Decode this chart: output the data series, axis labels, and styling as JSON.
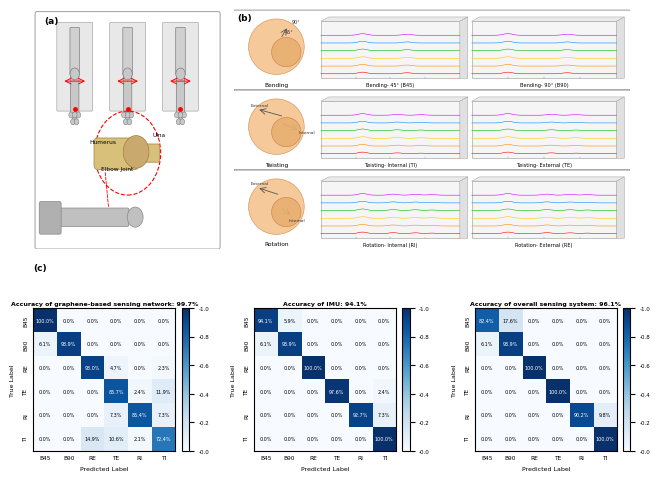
{
  "cm1_title": "Accuracy of graphene-based sensing network: 99.7%",
  "cm2_title": "Accuracy of IMU: 94.1%",
  "cm3_title": "Accuracy of overall sensing system: 96.1%",
  "labels": [
    "B45",
    "B90",
    "RE",
    "TE",
    "RI",
    "TI"
  ],
  "xlabel": "Predicted Label",
  "ylabel": "True Label",
  "cm1": [
    [
      1.0,
      0.0,
      0.0,
      0.0,
      0.0,
      0.0
    ],
    [
      0.061,
      0.939,
      0.0,
      0.0,
      0.0,
      0.0
    ],
    [
      0.0,
      0.0,
      0.93,
      0.047,
      0.0,
      0.023
    ],
    [
      0.0,
      0.0,
      0.0,
      0.857,
      0.024,
      0.119
    ],
    [
      0.0,
      0.0,
      0.0,
      0.073,
      0.854,
      0.073
    ],
    [
      0.0,
      0.0,
      0.149,
      0.106,
      0.021,
      0.724
    ]
  ],
  "cm1_text": [
    [
      "100.0%",
      "0.0%",
      "0.0%",
      "0.0%",
      "0.0%",
      "0.0%"
    ],
    [
      "6.1%",
      "93.9%",
      "0.0%",
      "0.0%",
      "0.0%",
      "0.0%"
    ],
    [
      "0.0%",
      "0.0%",
      "93.0%",
      "4.7%",
      "0.0%",
      "2.3%"
    ],
    [
      "0.0%",
      "0.0%",
      "0.0%",
      "85.7%",
      "2.4%",
      "11.9%"
    ],
    [
      "0.0%",
      "0.0%",
      "0.0%",
      "7.3%",
      "85.4%",
      "7.3%"
    ],
    [
      "0.0%",
      "0.0%",
      "14.9%",
      "10.6%",
      "2.1%",
      "72.4%"
    ]
  ],
  "cm2": [
    [
      0.941,
      0.059,
      0.0,
      0.0,
      0.0,
      0.0
    ],
    [
      0.061,
      0.939,
      0.0,
      0.0,
      0.0,
      0.0
    ],
    [
      0.0,
      0.0,
      1.0,
      0.0,
      0.0,
      0.0
    ],
    [
      0.0,
      0.0,
      0.0,
      0.976,
      0.0,
      0.024
    ],
    [
      0.0,
      0.0,
      0.0,
      0.0,
      0.927,
      0.073
    ],
    [
      0.0,
      0.0,
      0.0,
      0.0,
      0.0,
      1.0
    ]
  ],
  "cm2_text": [
    [
      "94.1%",
      "5.9%",
      "0.0%",
      "0.0%",
      "0.0%",
      "0.0%"
    ],
    [
      "6.1%",
      "93.9%",
      "0.0%",
      "0.0%",
      "0.0%",
      "0.0%"
    ],
    [
      "0.0%",
      "0.0%",
      "100.0%",
      "0.0%",
      "0.0%",
      "0.0%"
    ],
    [
      "0.0%",
      "0.0%",
      "0.0%",
      "97.6%",
      "0.0%",
      "2.4%"
    ],
    [
      "0.0%",
      "0.0%",
      "0.0%",
      "0.0%",
      "92.7%",
      "7.3%"
    ],
    [
      "0.0%",
      "0.0%",
      "0.0%",
      "0.0%",
      "0.0%",
      "100.0%"
    ]
  ],
  "cm3": [
    [
      0.824,
      0.176,
      0.0,
      0.0,
      0.0,
      0.0
    ],
    [
      0.061,
      0.939,
      0.0,
      0.0,
      0.0,
      0.0
    ],
    [
      0.0,
      0.0,
      1.0,
      0.0,
      0.0,
      0.0
    ],
    [
      0.0,
      0.0,
      0.0,
      1.0,
      0.0,
      0.0
    ],
    [
      0.0,
      0.0,
      0.0,
      0.0,
      0.902,
      0.098
    ],
    [
      0.0,
      0.0,
      0.0,
      0.0,
      0.0,
      1.0
    ]
  ],
  "cm3_text": [
    [
      "82.4%",
      "17.6%",
      "0.0%",
      "0.0%",
      "0.0%",
      "0.0%"
    ],
    [
      "6.1%",
      "93.9%",
      "0.0%",
      "0.0%",
      "0.0%",
      "0.0%"
    ],
    [
      "0.0%",
      "0.0%",
      "100.0%",
      "0.0%",
      "0.0%",
      "0.0%"
    ],
    [
      "0.0%",
      "0.0%",
      "0.0%",
      "100.0%",
      "0.0%",
      "0.0%"
    ],
    [
      "0.0%",
      "0.0%",
      "0.0%",
      "0.0%",
      "90.2%",
      "9.8%"
    ],
    [
      "0.0%",
      "0.0%",
      "0.0%",
      "0.0%",
      "0.0%",
      "100.0%"
    ]
  ],
  "cmap": "Blues",
  "vmin": 0.0,
  "vmax": 1.0,
  "rows_b": [
    [
      "Bending",
      "Bending- 45° (B45)",
      "Bending- 90° (B90)"
    ],
    [
      "Twisting",
      "Twisting- Internal (TI)",
      "Twisting- External (TE)"
    ],
    [
      "Rotation",
      "Rotation- Internal (RI)",
      "Rotation- External (RE)"
    ]
  ],
  "signal_colors": [
    "#ff0000",
    "#ff8800",
    "#ffcc00",
    "#00bb00",
    "#0088ff",
    "#cc00ff"
  ]
}
